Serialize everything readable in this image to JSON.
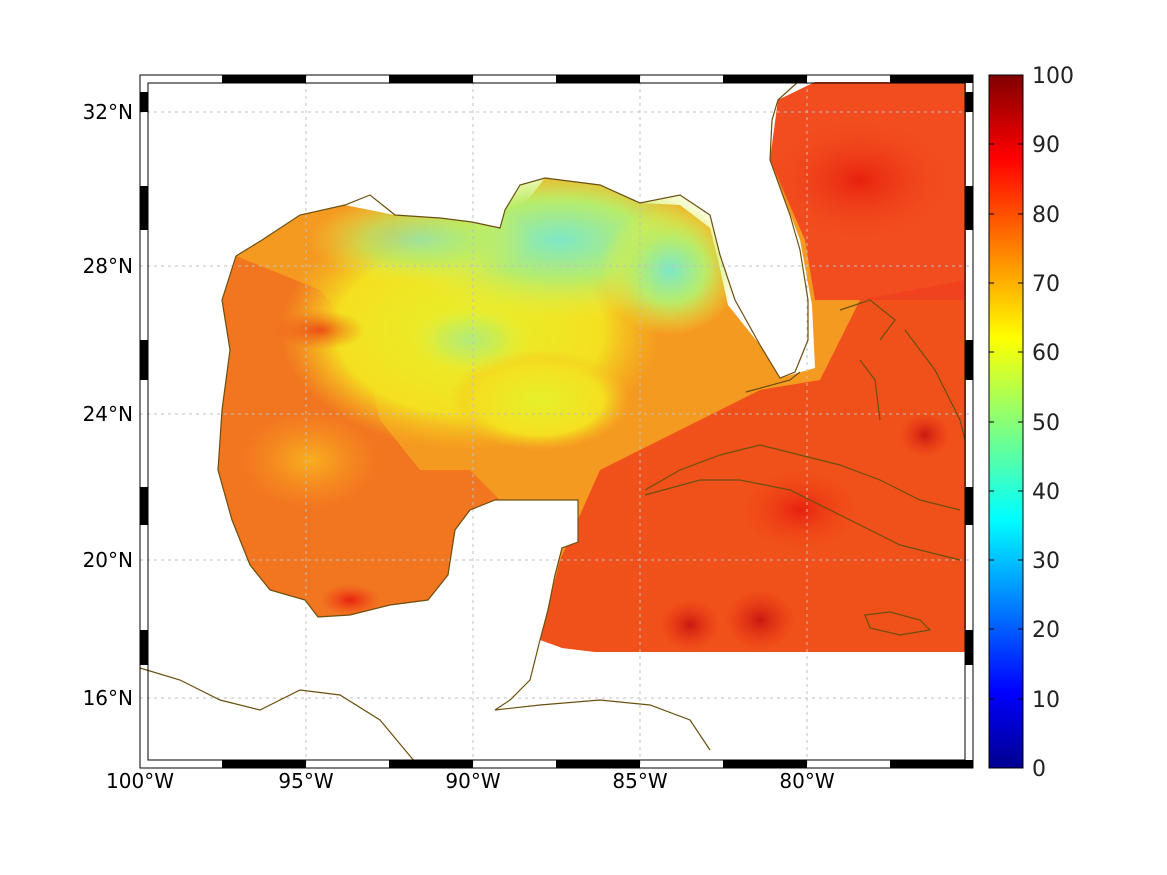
{
  "map": {
    "lon_range": [
      -100,
      -75
    ],
    "lat_range": [
      14.2,
      33
    ],
    "lon_ticks": [
      {
        "value": -100,
        "label": "100°W"
      },
      {
        "value": -95,
        "label": "95°W"
      },
      {
        "value": -90,
        "label": "90°W"
      },
      {
        "value": -85,
        "label": "85°W"
      },
      {
        "value": -80,
        "label": "80°W"
      }
    ],
    "lat_ticks": [
      {
        "value": 32,
        "label": "32°N"
      },
      {
        "value": 28,
        "label": "28°N"
      },
      {
        "value": 24,
        "label": "24°N"
      },
      {
        "value": 20,
        "label": "20°N"
      },
      {
        "value": 16,
        "label": "16°N"
      }
    ],
    "grid": true,
    "coastline_color": "#6b4f10"
  },
  "colorbar": {
    "min": 0,
    "max": 100,
    "ticks": [
      "0",
      "10",
      "20",
      "30",
      "40",
      "50",
      "60",
      "70",
      "80",
      "90",
      "100"
    ],
    "colormap": "jet",
    "position": "right"
  }
}
